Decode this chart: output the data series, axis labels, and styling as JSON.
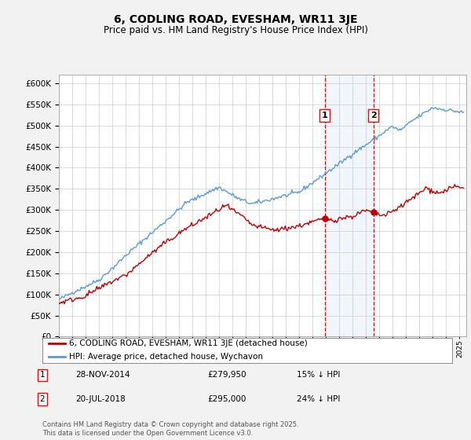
{
  "title": "6, CODLING ROAD, EVESHAM, WR11 3JE",
  "subtitle": "Price paid vs. HM Land Registry's House Price Index (HPI)",
  "ylim": [
    0,
    620000
  ],
  "yticks": [
    0,
    50000,
    100000,
    150000,
    200000,
    250000,
    300000,
    350000,
    400000,
    450000,
    500000,
    550000,
    600000
  ],
  "sale1_date": "28-NOV-2014",
  "sale1_price": 279950,
  "sale1_hpi_note": "15% ↓ HPI",
  "sale2_date": "20-JUL-2018",
  "sale2_price": 295000,
  "sale2_hpi_note": "24% ↓ HPI",
  "sale1_x": 2014.91,
  "sale2_x": 2018.55,
  "hpi_color": "#5b9bd5",
  "price_color": "#c00000",
  "shade_color": "#cfe2f3",
  "vline_color": "#ff0000",
  "legend_label1": "6, CODLING ROAD, EVESHAM, WR11 3JE (detached house)",
  "legend_label2": "HPI: Average price, detached house, Wychavon",
  "copyright_text": "Contains HM Land Registry data © Crown copyright and database right 2025.\nThis data is licensed under the Open Government Licence v3.0.",
  "background_color": "#f2f2f2",
  "plot_background": "#ffffff"
}
